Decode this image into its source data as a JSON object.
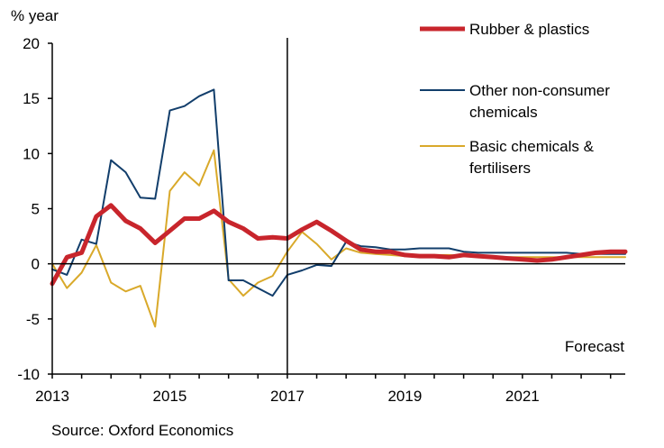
{
  "chart_data": {
    "type": "line",
    "ylabel": "% year",
    "ylim": [
      -10,
      20
    ],
    "yticks": [
      20,
      15,
      10,
      5,
      0,
      -5,
      -10
    ],
    "xlim": [
      2013,
      2022.75
    ],
    "xticks": [
      2013,
      2015,
      2017,
      2019,
      2021
    ],
    "forecast_start": 2017,
    "forecast_label": "Forecast",
    "source": "Source: Oxford Economics",
    "grid": false,
    "legend": {
      "placement": "top-right",
      "entries": [
        {
          "line1": "Rubber & plastics",
          "line2": ""
        },
        {
          "line1": "Other non-consumer",
          "line2": "chemicals"
        },
        {
          "line1": "Basic chemicals &",
          "line2": "fertilisers"
        }
      ]
    },
    "x": [
      2013,
      2013.25,
      2013.5,
      2013.75,
      2014,
      2014.25,
      2014.5,
      2014.75,
      2015,
      2015.25,
      2015.5,
      2015.75,
      2016,
      2016.25,
      2016.5,
      2016.75,
      2017,
      2017.25,
      2017.5,
      2017.75,
      2018,
      2018.25,
      2018.5,
      2018.75,
      2019,
      2019.25,
      2019.5,
      2019.75,
      2020,
      2020.25,
      2020.5,
      2020.75,
      2021,
      2021.25,
      2021.5,
      2021.75,
      2022,
      2022.25,
      2022.5,
      2022.75
    ],
    "series": [
      {
        "name": "Rubber & plastics",
        "color": "#c8252c",
        "width": 5,
        "values": [
          -1.8,
          0.6,
          1.0,
          4.3,
          5.3,
          3.9,
          3.2,
          1.9,
          3.0,
          4.1,
          4.1,
          4.8,
          3.8,
          3.2,
          2.3,
          2.4,
          2.3,
          3.1,
          3.8,
          3.0,
          2.1,
          1.3,
          1.1,
          1.1,
          0.8,
          0.7,
          0.7,
          0.6,
          0.8,
          0.7,
          0.6,
          0.5,
          0.4,
          0.3,
          0.4,
          0.6,
          0.8,
          1.0,
          1.1,
          1.1
        ]
      },
      {
        "name": "Other non-consumer chemicals",
        "color": "#123e6b",
        "width": 2,
        "values": [
          -0.5,
          -1.0,
          2.2,
          1.8,
          9.4,
          8.3,
          6.0,
          5.9,
          13.9,
          14.3,
          15.2,
          15.8,
          -1.5,
          -1.5,
          -2.2,
          -2.9,
          -1.0,
          -0.6,
          -0.1,
          -0.2,
          2.0,
          1.6,
          1.5,
          1.3,
          1.3,
          1.4,
          1.4,
          1.4,
          1.1,
          1.0,
          1.0,
          1.0,
          1.0,
          1.0,
          1.0,
          1.0,
          0.9,
          0.9,
          0.9,
          0.9
        ]
      },
      {
        "name": "Basic chemicals & fertilisers",
        "color": "#d9a92a",
        "width": 2,
        "values": [
          0.0,
          -2.2,
          -0.8,
          1.7,
          -1.7,
          -2.5,
          -2.0,
          -5.7,
          6.6,
          8.3,
          7.1,
          10.3,
          -1.4,
          -2.9,
          -1.7,
          -1.1,
          1.1,
          2.9,
          1.8,
          0.4,
          1.4,
          1.0,
          0.9,
          0.8,
          0.7,
          0.8,
          0.8,
          0.8,
          0.7,
          0.7,
          0.7,
          0.6,
          0.6,
          0.6,
          0.6,
          0.6,
          0.6,
          0.6,
          0.6,
          0.6
        ]
      }
    ]
  }
}
